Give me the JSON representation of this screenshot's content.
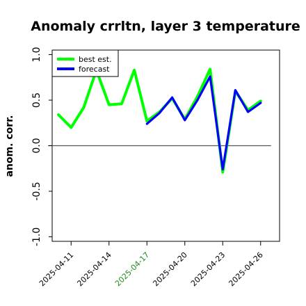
{
  "chart_data": {
    "type": "line",
    "title": "Anomaly crrltn, layer 3 temperature",
    "xlabel": "",
    "ylabel": "anom. corr.",
    "ylim": [
      -1.05,
      1.05
    ],
    "xlim": [
      "2025-04-09T12:00",
      "2025-04-27T12:00"
    ],
    "yticks": [
      -1.0,
      -0.5,
      0.0,
      0.5,
      1.0
    ],
    "ytick_labels": [
      "-1.0",
      "-0.5",
      "0.0",
      "0.5",
      "1.0"
    ],
    "xticks": [
      {
        "date": "2025-04-11",
        "label": "2025-04-11",
        "color": "#000000"
      },
      {
        "date": "2025-04-14",
        "label": "2025-04-14",
        "color": "#000000"
      },
      {
        "date": "2025-04-17",
        "label": "2025-04-17",
        "color": "#228B22"
      },
      {
        "date": "2025-04-20",
        "label": "2025-04-20",
        "color": "#000000"
      },
      {
        "date": "2025-04-23",
        "label": "2025-04-23",
        "color": "#000000"
      },
      {
        "date": "2025-04-26",
        "label": "2025-04-26",
        "color": "#000000"
      }
    ],
    "hline": 0.0,
    "grid": false,
    "legend_placement": "top-left",
    "series": [
      {
        "name": "best est.",
        "color": "#00ff00",
        "points": [
          {
            "x": "2025-04-10",
            "y": 0.34
          },
          {
            "x": "2025-04-11",
            "y": 0.2
          },
          {
            "x": "2025-04-12",
            "y": 0.42
          },
          {
            "x": "2025-04-13",
            "y": 0.83
          },
          {
            "x": "2025-04-14",
            "y": 0.45
          },
          {
            "x": "2025-04-15",
            "y": 0.46
          },
          {
            "x": "2025-04-16",
            "y": 0.83
          },
          {
            "x": "2025-04-17",
            "y": 0.27
          },
          {
            "x": "2025-04-18",
            "y": 0.37
          },
          {
            "x": "2025-04-19",
            "y": 0.52
          },
          {
            "x": "2025-04-20",
            "y": 0.29
          },
          {
            "x": "2025-04-21",
            "y": 0.54
          },
          {
            "x": "2025-04-22",
            "y": 0.84
          },
          {
            "x": "2025-04-23",
            "y": -0.29
          },
          {
            "x": "2025-04-24",
            "y": 0.6
          },
          {
            "x": "2025-04-25",
            "y": 0.39
          },
          {
            "x": "2025-04-26",
            "y": 0.49
          }
        ]
      },
      {
        "name": "forecast",
        "color": "#0000ff",
        "points": [
          {
            "x": "2025-04-17",
            "y": 0.24
          },
          {
            "x": "2025-04-18",
            "y": 0.36
          },
          {
            "x": "2025-04-19",
            "y": 0.53
          },
          {
            "x": "2025-04-20",
            "y": 0.28
          },
          {
            "x": "2025-04-21",
            "y": 0.5
          },
          {
            "x": "2025-04-22",
            "y": 0.76
          },
          {
            "x": "2025-04-23",
            "y": -0.26
          },
          {
            "x": "2025-04-24",
            "y": 0.61
          },
          {
            "x": "2025-04-25",
            "y": 0.37
          },
          {
            "x": "2025-04-26",
            "y": 0.47
          }
        ]
      }
    ]
  }
}
